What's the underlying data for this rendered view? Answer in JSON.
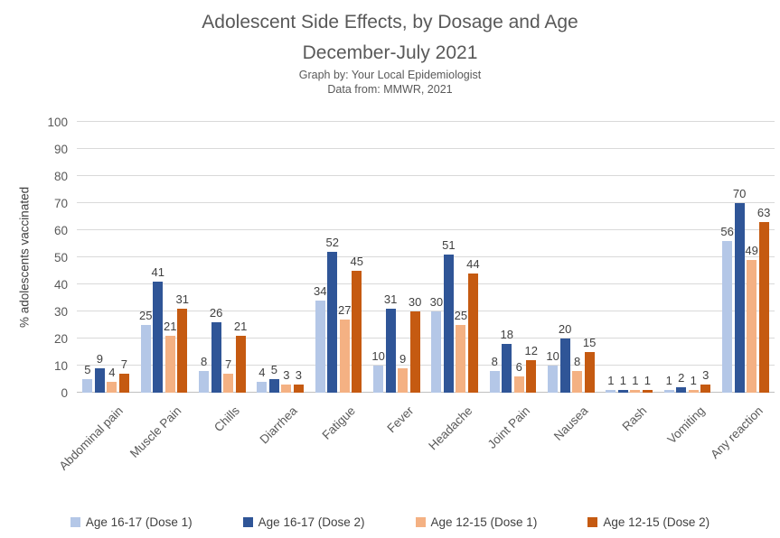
{
  "header": {
    "title_line1": "Adolescent Side Effects, by Dosage and Age",
    "title_line2": "December-July 2021",
    "credit": "Graph by: Your Local Epidemiologist",
    "source": "Data from: MMWR, 2021"
  },
  "chart_data": {
    "type": "bar",
    "title": "Adolescent Side Effects, by Dosage and Age December-July 2021",
    "ylabel": "% adolescents vaccinated",
    "xlabel": "",
    "ylim": [
      0,
      100
    ],
    "ytick_step": 10,
    "grid": true,
    "legend_position": "bottom",
    "categories": [
      "Abdominal pain",
      "Muscle Pain",
      "Chills",
      "Diarrhea",
      "Fatigue",
      "Fever",
      "Headache",
      "Joint Pain",
      "Nausea",
      "Rash",
      "Vomiting",
      "Any reaction"
    ],
    "series": [
      {
        "name": "Age 16-17 (Dose 1)",
        "color": "#B4C7E7",
        "values": [
          5,
          25,
          8,
          4,
          34,
          10,
          30,
          8,
          10,
          1,
          1,
          56
        ]
      },
      {
        "name": "Age 16-17 (Dose 2)",
        "color": "#2F5597",
        "values": [
          9,
          41,
          26,
          5,
          52,
          31,
          51,
          18,
          20,
          1,
          2,
          70
        ]
      },
      {
        "name": "Age 12-15 (Dose 1)",
        "color": "#F4B183",
        "values": [
          4,
          21,
          7,
          3,
          27,
          9,
          25,
          6,
          8,
          1,
          1,
          49
        ]
      },
      {
        "name": "Age 12-15 (Dose 2)",
        "color": "#C55A11",
        "values": [
          7,
          31,
          21,
          3,
          45,
          30,
          44,
          12,
          15,
          1,
          3,
          63
        ]
      }
    ],
    "colors": {
      "gridline": "#d9d9d9",
      "axis_line": "#bfbfbf",
      "axis_text": "#595959",
      "data_label_text": "#404040",
      "title_text": "#595959"
    }
  }
}
